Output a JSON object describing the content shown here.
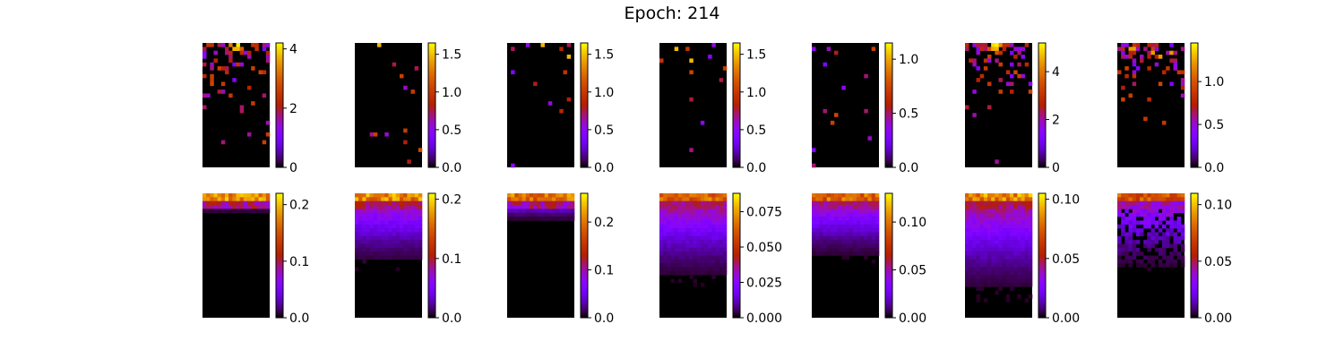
{
  "title": "Epoch: 214",
  "chart_data": {
    "type": "heatmap",
    "colormap": "gnuplot",
    "grid_shape": [
      2,
      7
    ],
    "map_resolution": [
      32,
      18
    ],
    "panels": [
      {
        "row": 0,
        "col": 0,
        "vmax": 4.2,
        "ticks": [
          {
            "v": 0,
            "label": "0"
          },
          {
            "v": 2,
            "label": "2"
          },
          {
            "v": 4,
            "label": "4"
          }
        ],
        "pattern": "sparse",
        "hotspot": 0.5,
        "density": 0.45,
        "peak": 1.0
      },
      {
        "row": 0,
        "col": 1,
        "vmax": 1.65,
        "ticks": [
          {
            "v": 0,
            "label": "0.0"
          },
          {
            "v": 0.5,
            "label": "0.5"
          },
          {
            "v": 1.0,
            "label": "1.0"
          },
          {
            "v": 1.5,
            "label": "1.5"
          }
        ],
        "pattern": "sparse",
        "hotspot": -1,
        "density": 0.05,
        "peak": 0.9
      },
      {
        "row": 0,
        "col": 2,
        "vmax": 1.65,
        "ticks": [
          {
            "v": 0,
            "label": "0.0"
          },
          {
            "v": 0.5,
            "label": "0.5"
          },
          {
            "v": 1.0,
            "label": "1.0"
          },
          {
            "v": 1.5,
            "label": "1.5"
          }
        ],
        "pattern": "sparse",
        "hotspot": -1,
        "density": 0.07,
        "peak": 0.9
      },
      {
        "row": 0,
        "col": 3,
        "vmax": 1.65,
        "ticks": [
          {
            "v": 0,
            "label": "0.0"
          },
          {
            "v": 0.5,
            "label": "0.5"
          },
          {
            "v": 1.0,
            "label": "1.0"
          },
          {
            "v": 1.5,
            "label": "1.5"
          }
        ],
        "pattern": "sparse",
        "hotspot": -1,
        "density": 0.05,
        "peak": 0.9
      },
      {
        "row": 0,
        "col": 4,
        "vmax": 1.15,
        "ticks": [
          {
            "v": 0,
            "label": "0.0"
          },
          {
            "v": 0.5,
            "label": "0.5"
          },
          {
            "v": 1.0,
            "label": "1.0"
          }
        ],
        "pattern": "sparse",
        "hotspot": -1,
        "density": 0.06,
        "peak": 0.9
      },
      {
        "row": 0,
        "col": 5,
        "vmax": 5.2,
        "ticks": [
          {
            "v": 0,
            "label": "0"
          },
          {
            "v": 2,
            "label": "2"
          },
          {
            "v": 4,
            "label": "4"
          }
        ],
        "pattern": "sparse",
        "hotspot": 0.45,
        "density": 0.5,
        "peak": 1.0
      },
      {
        "row": 0,
        "col": 6,
        "vmax": 1.45,
        "ticks": [
          {
            "v": 0,
            "label": "0.0"
          },
          {
            "v": 0.5,
            "label": "0.5"
          },
          {
            "v": 1.0,
            "label": "1.0"
          }
        ],
        "pattern": "sparse",
        "hotspot": -1,
        "density": 0.5,
        "peak": 0.85
      },
      {
        "row": 1,
        "col": 0,
        "vmax": 0.22,
        "ticks": [
          {
            "v": 0,
            "label": "0.0"
          },
          {
            "v": 0.1,
            "label": "0.1"
          },
          {
            "v": 0.2,
            "label": "0.2"
          }
        ],
        "pattern": "smooth",
        "depth": 0.12,
        "peak": 0.95
      },
      {
        "row": 1,
        "col": 1,
        "vmax": 0.21,
        "ticks": [
          {
            "v": 0,
            "label": "0.0"
          },
          {
            "v": 0.1,
            "label": "0.1"
          },
          {
            "v": 0.2,
            "label": "0.2"
          }
        ],
        "pattern": "smooth",
        "depth": 0.5,
        "peak": 0.95
      },
      {
        "row": 1,
        "col": 2,
        "vmax": 0.26,
        "ticks": [
          {
            "v": 0,
            "label": "0.0"
          },
          {
            "v": 0.1,
            "label": "0.1"
          },
          {
            "v": 0.2,
            "label": "0.2"
          }
        ],
        "pattern": "smooth",
        "depth": 0.18,
        "peak": 0.9
      },
      {
        "row": 1,
        "col": 3,
        "vmax": 0.088,
        "ticks": [
          {
            "v": 0,
            "label": "0.000"
          },
          {
            "v": 0.025,
            "label": "0.025"
          },
          {
            "v": 0.05,
            "label": "0.050"
          },
          {
            "v": 0.075,
            "label": "0.075"
          }
        ],
        "pattern": "smooth",
        "depth": 0.6,
        "peak": 0.85
      },
      {
        "row": 1,
        "col": 4,
        "vmax": 0.13,
        "ticks": [
          {
            "v": 0,
            "label": "0.00"
          },
          {
            "v": 0.05,
            "label": "0.05"
          },
          {
            "v": 0.1,
            "label": "0.10"
          }
        ],
        "pattern": "smooth",
        "depth": 0.45,
        "peak": 0.85
      },
      {
        "row": 1,
        "col": 5,
        "vmax": 0.105,
        "ticks": [
          {
            "v": 0,
            "label": "0.00"
          },
          {
            "v": 0.05,
            "label": "0.05"
          },
          {
            "v": 0.1,
            "label": "0.10"
          }
        ],
        "pattern": "smooth",
        "depth": 0.7,
        "peak": 0.95
      },
      {
        "row": 1,
        "col": 6,
        "vmax": 0.11,
        "ticks": [
          {
            "v": 0,
            "label": "0.00"
          },
          {
            "v": 0.05,
            "label": "0.05"
          },
          {
            "v": 0.1,
            "label": "0.10"
          }
        ],
        "pattern": "patchy",
        "depth": 0.55,
        "peak": 0.8
      }
    ]
  }
}
